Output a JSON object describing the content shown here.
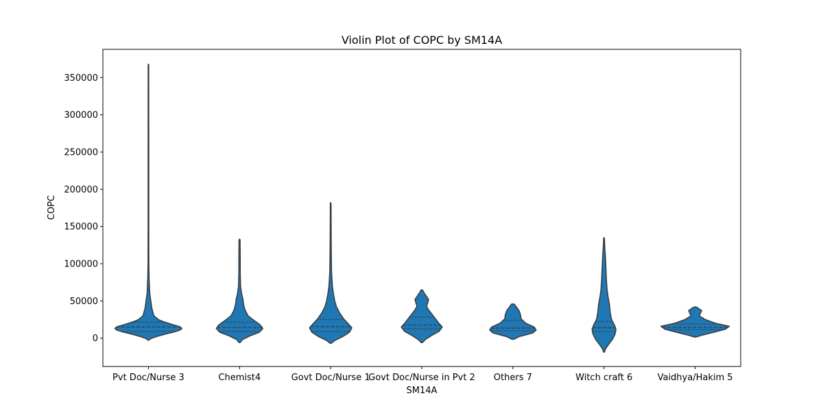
{
  "chart_data": {
    "type": "violin",
    "title": "Violin Plot of COPC by SM14A",
    "xlabel": "SM14A",
    "ylabel": "COPC",
    "ylim": [
      -38000,
      388000
    ],
    "yticks": [
      0,
      50000,
      100000,
      150000,
      200000,
      250000,
      300000,
      350000
    ],
    "grid": false,
    "colors": {
      "fill": "#1f77b4",
      "edge": "#3a3a3a",
      "quartile": "#3a3a3a"
    },
    "categories": [
      "Pvt Doc/Nurse 3",
      "Chemist4",
      "Govt Doc/Nurse 1",
      "Govt Doc/Nurse in Pvt 2",
      "Others 7",
      "Witch craft 6",
      "Vaidhya/Hakim 5"
    ],
    "violins": [
      {
        "category": "Pvt Doc/Nurse 3",
        "quartiles": [
          9000,
          15000,
          21500
        ],
        "profile": [
          [
            -3000,
            0.02
          ],
          [
            0,
            0.08
          ],
          [
            5000,
            0.45
          ],
          [
            9000,
            0.8
          ],
          [
            12000,
            1.0
          ],
          [
            15000,
            0.95
          ],
          [
            19000,
            0.65
          ],
          [
            24000,
            0.32
          ],
          [
            30000,
            0.16
          ],
          [
            40000,
            0.1
          ],
          [
            50000,
            0.07
          ],
          [
            60000,
            0.04
          ],
          [
            70000,
            0.03
          ],
          [
            80000,
            0.02
          ],
          [
            100000,
            0.012
          ],
          [
            150000,
            0.01
          ],
          [
            250000,
            0.01
          ],
          [
            368000,
            0.008
          ]
        ]
      },
      {
        "category": "Chemist4",
        "quartiles": [
          9000,
          14500,
          21500
        ],
        "profile": [
          [
            -6000,
            0.02
          ],
          [
            -2000,
            0.08
          ],
          [
            3000,
            0.3
          ],
          [
            8000,
            0.58
          ],
          [
            13000,
            0.68
          ],
          [
            18000,
            0.6
          ],
          [
            24000,
            0.42
          ],
          [
            30000,
            0.25
          ],
          [
            38000,
            0.16
          ],
          [
            45000,
            0.12
          ],
          [
            52000,
            0.1
          ],
          [
            60000,
            0.06
          ],
          [
            70000,
            0.03
          ],
          [
            90000,
            0.02
          ],
          [
            110000,
            0.02
          ],
          [
            133000,
            0.015
          ]
        ]
      },
      {
        "category": "Govt Doc/Nurse 1",
        "quartiles": [
          9000,
          15500,
          25000
        ],
        "profile": [
          [
            -7000,
            0.02
          ],
          [
            -3000,
            0.12
          ],
          [
            2000,
            0.35
          ],
          [
            8000,
            0.55
          ],
          [
            14000,
            0.62
          ],
          [
            20000,
            0.5
          ],
          [
            26000,
            0.38
          ],
          [
            34000,
            0.26
          ],
          [
            42000,
            0.17
          ],
          [
            50000,
            0.12
          ],
          [
            60000,
            0.08
          ],
          [
            70000,
            0.05
          ],
          [
            90000,
            0.025
          ],
          [
            130000,
            0.015
          ],
          [
            182000,
            0.01
          ]
        ]
      },
      {
        "category": "Govt Doc/Nurse in Pvt 2",
        "quartiles": [
          12500,
          17500,
          28500
        ],
        "profile": [
          [
            -6000,
            0.02
          ],
          [
            -2000,
            0.1
          ],
          [
            4000,
            0.3
          ],
          [
            9000,
            0.5
          ],
          [
            15000,
            0.6
          ],
          [
            20000,
            0.5
          ],
          [
            26000,
            0.4
          ],
          [
            32000,
            0.3
          ],
          [
            38000,
            0.2
          ],
          [
            43000,
            0.14
          ],
          [
            47000,
            0.17
          ],
          [
            52000,
            0.2
          ],
          [
            56000,
            0.14
          ],
          [
            60000,
            0.08
          ],
          [
            65000,
            0.02
          ]
        ]
      },
      {
        "category": "Others 7",
        "quartiles": [
          10000,
          13500,
          24000
        ],
        "profile": [
          [
            -1500,
            0.03
          ],
          [
            2000,
            0.18
          ],
          [
            7000,
            0.58
          ],
          [
            11000,
            0.68
          ],
          [
            15000,
            0.62
          ],
          [
            20000,
            0.38
          ],
          [
            26000,
            0.24
          ],
          [
            32000,
            0.22
          ],
          [
            37000,
            0.18
          ],
          [
            42000,
            0.1
          ],
          [
            46000,
            0.04
          ]
        ]
      },
      {
        "category": "Witch craft 6",
        "quartiles": [
          9000,
          14000,
          22500
        ],
        "profile": [
          [
            -19000,
            0.01
          ],
          [
            -14000,
            0.05
          ],
          [
            -8000,
            0.14
          ],
          [
            -2000,
            0.24
          ],
          [
            5000,
            0.32
          ],
          [
            12000,
            0.35
          ],
          [
            18000,
            0.3
          ],
          [
            25000,
            0.22
          ],
          [
            35000,
            0.18
          ],
          [
            45000,
            0.16
          ],
          [
            55000,
            0.12
          ],
          [
            65000,
            0.09
          ],
          [
            78000,
            0.07
          ],
          [
            90000,
            0.06
          ],
          [
            100000,
            0.05
          ],
          [
            110000,
            0.04
          ],
          [
            120000,
            0.025
          ],
          [
            135000,
            0.01
          ]
        ]
      },
      {
        "category": "Vaidhya/Hakim 5",
        "quartiles": [
          11500,
          14500,
          19000
        ],
        "profile": [
          [
            1500,
            0.03
          ],
          [
            4000,
            0.2
          ],
          [
            8000,
            0.55
          ],
          [
            12000,
            0.88
          ],
          [
            16000,
            1.0
          ],
          [
            20000,
            0.6
          ],
          [
            25000,
            0.3
          ],
          [
            30000,
            0.12
          ],
          [
            34000,
            0.16
          ],
          [
            37000,
            0.19
          ],
          [
            40000,
            0.1
          ],
          [
            42000,
            0.03
          ]
        ]
      }
    ]
  }
}
